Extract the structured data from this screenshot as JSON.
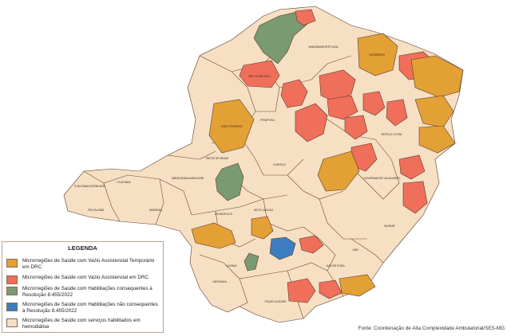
{
  "colors": {
    "vazio_temporario": "#e3a035",
    "vazio_drc": "#f06f5b",
    "habilitacoes_consequentes": "#7a9a72",
    "habilitacoes_nao_consequentes": "#3d7ec0",
    "com_servicos": "#f6dfc3",
    "border": "#5a3a2a"
  },
  "map": {
    "region_labels": [
      "JANAÚBA/MONTE AZUL",
      "TAIOBEIRAS",
      "SÃO FRANCISCO",
      "JOÃO PINHEIRO",
      "PIRAPORA",
      "TEÓFILO OTONI",
      "GOVERNADOR VALADARES",
      "PATOS DE MINAS",
      "CURVELO",
      "UBERABA",
      "FRUTAL/IRAÍ",
      "ITUIUTABA",
      "ITUIUTABA/GURINHATÃ",
      "UBERLÂNDIA/ARAGUARI",
      "SETE LAGOAS",
      "DIVINÓPOLIS",
      "JUIZ DE FORA",
      "UBÁ",
      "MURIAÉ",
      "LAVRAS",
      "POUSO ALEGRE",
      "VARGINHA"
    ]
  },
  "legend": {
    "title": "LEGENDA",
    "items": [
      {
        "text": "Microrregiões de Saúde com Vazio Assistencial Temporário em DRC",
        "color_key": "vazio_temporario"
      },
      {
        "text": "Microrregiões de Saúde com Vazio Assistencial em DRC",
        "color_key": "vazio_drc"
      },
      {
        "text": "Microrregiões de Saúde com Habilitações consequentes à Resolução 8.455/2022",
        "color_key": "habilitacoes_consequentes"
      },
      {
        "text": "Microrregiões de Saúde com Habilitações não consequentes à Resolução 8.455/2022",
        "color_key": "habilitacoes_nao_consequentes"
      },
      {
        "text": "Microrregiões de Saúde com serviços habilitados em hemodiálise",
        "color_key": "com_servicos"
      }
    ]
  },
  "source": "Fonte: Coordenação de Alta Complexidade Ambulatorial/SES-MG"
}
